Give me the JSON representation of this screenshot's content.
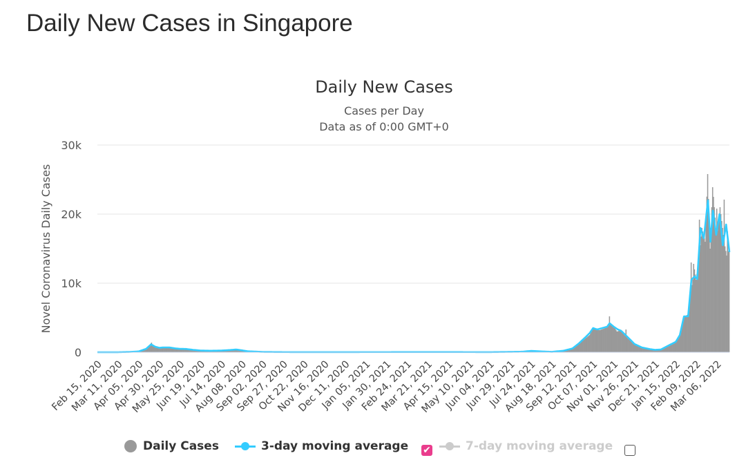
{
  "page": {
    "title": "Daily New Cases in Singapore"
  },
  "chart_data": {
    "type": "bar",
    "title": "Daily New Cases",
    "subtitle_lines": [
      "Cases per Day",
      "Data as of 0:00 GMT+0"
    ],
    "ylabel": "Novel Coronavirus Daily Cases",
    "xlabel": "",
    "ylim": [
      0,
      30000
    ],
    "yticks": [
      0,
      10000,
      20000,
      30000
    ],
    "ytick_labels": [
      "0",
      "10k",
      "20k",
      "30k"
    ],
    "x_range": [
      "2020-02-15",
      "2022-03-21"
    ],
    "xtick_labels": [
      "Feb 15, 2020",
      "Mar 11, 2020",
      "Apr 05, 2020",
      "Apr 30, 2020",
      "May 25, 2020",
      "Jun 19, 2020",
      "Jul 14, 2020",
      "Aug 08, 2020",
      "Sep 02, 2020",
      "Sep 27, 2020",
      "Oct 22, 2020",
      "Nov 16, 2020",
      "Dec 11, 2020",
      "Jan 05, 2021",
      "Jan 30, 2021",
      "Feb 24, 2021",
      "Mar 21, 2021",
      "Apr 15, 2021",
      "May 10, 2021",
      "Jun 04, 2021",
      "Jun 29, 2021",
      "Jul 24, 2021",
      "Aug 18, 2021",
      "Sep 12, 2021",
      "Oct 07, 2021",
      "Nov 01, 2021",
      "Nov 26, 2021",
      "Dec 21, 2021",
      "Jan 15, 2022",
      "Feb 09, 2022",
      "Mar 06, 2022"
    ],
    "grid": true,
    "legend_position": "bottom",
    "colors": {
      "daily": "#999999",
      "ma3": "#33ccff",
      "ma7": "#cccccc",
      "grid": "#e6e6e6",
      "checkbox": "#ea3d8d"
    },
    "series": [
      {
        "name": "Daily Cases",
        "type": "bar",
        "visible": true,
        "points": [
          [
            "2020-02-15",
            5
          ],
          [
            "2020-03-11",
            10
          ],
          [
            "2020-03-25",
            60
          ],
          [
            "2020-04-05",
            120
          ],
          [
            "2020-04-14",
            400
          ],
          [
            "2020-04-20",
            1200
          ],
          [
            "2020-04-23",
            900
          ],
          [
            "2020-04-27",
            700
          ],
          [
            "2020-04-30",
            600
          ],
          [
            "2020-05-05",
            650
          ],
          [
            "2020-05-10",
            650
          ],
          [
            "2020-05-15",
            600
          ],
          [
            "2020-05-20",
            550
          ],
          [
            "2020-05-25",
            450
          ],
          [
            "2020-06-01",
            500
          ],
          [
            "2020-06-08",
            350
          ],
          [
            "2020-06-19",
            250
          ],
          [
            "2020-06-30",
            220
          ],
          [
            "2020-07-08",
            200
          ],
          [
            "2020-07-14",
            260
          ],
          [
            "2020-07-25",
            320
          ],
          [
            "2020-08-01",
            400
          ],
          [
            "2020-08-08",
            300
          ],
          [
            "2020-08-15",
            150
          ],
          [
            "2020-08-25",
            100
          ],
          [
            "2020-09-02",
            50
          ],
          [
            "2020-09-27",
            20
          ],
          [
            "2020-11-16",
            10
          ],
          [
            "2021-01-05",
            25
          ],
          [
            "2021-04-15",
            25
          ],
          [
            "2021-06-04",
            20
          ],
          [
            "2021-07-14",
            80
          ],
          [
            "2021-07-24",
            200
          ],
          [
            "2021-08-05",
            100
          ],
          [
            "2021-08-18",
            60
          ],
          [
            "2021-09-01",
            200
          ],
          [
            "2021-09-12",
            500
          ],
          [
            "2021-09-20",
            1200
          ],
          [
            "2021-09-28",
            2000
          ],
          [
            "2021-10-03",
            2500
          ],
          [
            "2021-10-07",
            3400
          ],
          [
            "2021-10-15",
            3200
          ],
          [
            "2021-10-22",
            3500
          ],
          [
            "2021-10-27",
            4300
          ],
          [
            "2021-11-01",
            3800
          ],
          [
            "2021-11-05",
            3000
          ],
          [
            "2021-11-10",
            3200
          ],
          [
            "2021-11-14",
            2500
          ],
          [
            "2021-11-20",
            1800
          ],
          [
            "2021-11-26",
            1100
          ],
          [
            "2021-12-05",
            700
          ],
          [
            "2021-12-15",
            500
          ],
          [
            "2021-12-21",
            300
          ],
          [
            "2021-12-28",
            400
          ],
          [
            "2022-01-05",
            800
          ],
          [
            "2022-01-15",
            1500
          ],
          [
            "2022-01-20",
            2500
          ],
          [
            "2022-01-25",
            5000
          ],
          [
            "2022-01-30",
            5500
          ],
          [
            "2022-02-03",
            9000
          ],
          [
            "2022-02-07",
            12000
          ],
          [
            "2022-02-09",
            10500
          ],
          [
            "2022-02-12",
            13000
          ],
          [
            "2022-02-16",
            18000
          ],
          [
            "2022-02-20",
            16000
          ],
          [
            "2022-02-23",
            25800
          ],
          [
            "2022-02-26",
            15000
          ],
          [
            "2022-03-01",
            24000
          ],
          [
            "2022-03-06",
            16500
          ],
          [
            "2022-03-10",
            21000
          ],
          [
            "2022-03-15",
            16000
          ],
          [
            "2022-03-18",
            14000
          ],
          [
            "2022-03-21",
            15000
          ]
        ],
        "spikes": [
          [
            "2020-04-20",
            1400
          ],
          [
            "2021-10-27",
            5200
          ],
          [
            "2021-11-16",
            3300
          ],
          [
            "2022-02-03",
            13000
          ],
          [
            "2022-02-06",
            12800
          ],
          [
            "2022-02-13",
            19200
          ],
          [
            "2022-02-23",
            25800
          ],
          [
            "2022-03-01",
            23900
          ],
          [
            "2022-03-06",
            20800
          ],
          [
            "2022-03-15",
            22100
          ],
          [
            "2022-03-19",
            17500
          ]
        ]
      },
      {
        "name": "3-day moving average",
        "type": "line",
        "visible": true,
        "points": [
          [
            "2020-02-15",
            5
          ],
          [
            "2020-03-11",
            10
          ],
          [
            "2020-03-25",
            50
          ],
          [
            "2020-04-05",
            120
          ],
          [
            "2020-04-14",
            500
          ],
          [
            "2020-04-20",
            1150
          ],
          [
            "2020-04-25",
            800
          ],
          [
            "2020-04-30",
            650
          ],
          [
            "2020-05-05",
            700
          ],
          [
            "2020-05-12",
            700
          ],
          [
            "2020-05-20",
            550
          ],
          [
            "2020-05-25",
            500
          ],
          [
            "2020-06-01",
            480
          ],
          [
            "2020-06-10",
            350
          ],
          [
            "2020-06-19",
            250
          ],
          [
            "2020-07-01",
            220
          ],
          [
            "2020-07-14",
            250
          ],
          [
            "2020-07-25",
            330
          ],
          [
            "2020-08-01",
            400
          ],
          [
            "2020-08-08",
            280
          ],
          [
            "2020-08-15",
            140
          ],
          [
            "2020-08-25",
            90
          ],
          [
            "2020-09-02",
            50
          ],
          [
            "2020-09-27",
            25
          ],
          [
            "2020-11-16",
            15
          ],
          [
            "2021-01-05",
            25
          ],
          [
            "2021-04-15",
            30
          ],
          [
            "2021-06-04",
            20
          ],
          [
            "2021-07-14",
            80
          ],
          [
            "2021-07-24",
            200
          ],
          [
            "2021-08-05",
            120
          ],
          [
            "2021-08-18",
            60
          ],
          [
            "2021-09-01",
            220
          ],
          [
            "2021-09-12",
            550
          ],
          [
            "2021-09-20",
            1300
          ],
          [
            "2021-09-28",
            2200
          ],
          [
            "2021-10-03",
            2800
          ],
          [
            "2021-10-07",
            3500
          ],
          [
            "2021-10-12",
            3300
          ],
          [
            "2021-10-18",
            3500
          ],
          [
            "2021-10-24",
            3700
          ],
          [
            "2021-10-27",
            4200
          ],
          [
            "2021-11-01",
            3700
          ],
          [
            "2021-11-06",
            3300
          ],
          [
            "2021-11-10",
            3100
          ],
          [
            "2021-11-16",
            2400
          ],
          [
            "2021-11-22",
            1700
          ],
          [
            "2021-11-26",
            1200
          ],
          [
            "2021-12-05",
            700
          ],
          [
            "2021-12-15",
            450
          ],
          [
            "2021-12-21",
            350
          ],
          [
            "2021-12-28",
            400
          ],
          [
            "2022-01-05",
            900
          ],
          [
            "2022-01-15",
            1500
          ],
          [
            "2022-01-20",
            2500
          ],
          [
            "2022-01-25",
            5200
          ],
          [
            "2022-01-30",
            5200
          ],
          [
            "2022-02-03",
            10500
          ],
          [
            "2022-02-07",
            11000
          ],
          [
            "2022-02-10",
            10600
          ],
          [
            "2022-02-14",
            18000
          ],
          [
            "2022-02-18",
            16500
          ],
          [
            "2022-02-23",
            22000
          ],
          [
            "2022-02-26",
            16000
          ],
          [
            "2022-03-01",
            20500
          ],
          [
            "2022-03-05",
            17000
          ],
          [
            "2022-03-09",
            20000
          ],
          [
            "2022-03-13",
            15500
          ],
          [
            "2022-03-17",
            18500
          ],
          [
            "2022-03-21",
            14500
          ]
        ]
      },
      {
        "name": "7-day moving average",
        "type": "line",
        "visible": false,
        "points": []
      }
    ]
  },
  "legend": {
    "items": [
      {
        "label": "Daily Cases",
        "color": "#333333",
        "marker": "dot"
      },
      {
        "label": "3-day moving average",
        "color": "#33ccff",
        "marker": "line-dot",
        "checked": true
      },
      {
        "label": "7-day moving average",
        "color": "#cccccc",
        "marker": "line-dot",
        "checked": false
      }
    ]
  }
}
